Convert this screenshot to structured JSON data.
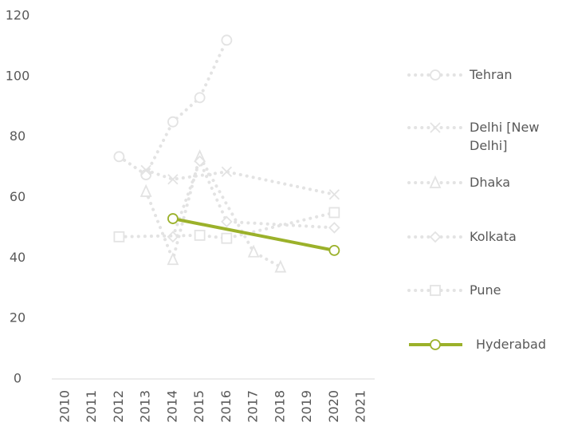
{
  "chart_data": {
    "type": "line",
    "xlim": [
      2009.5,
      2021.5
    ],
    "xticks": [
      2010,
      2011,
      2012,
      2013,
      2014,
      2015,
      2016,
      2017,
      2018,
      2019,
      2020,
      2021
    ],
    "ylim": [
      0,
      120
    ],
    "yticks": [
      0,
      20,
      40,
      60,
      80,
      100,
      120
    ],
    "grid": false,
    "legend": "right",
    "series": [
      {
        "name": "Tehran",
        "color": "#e3e3e3",
        "marker": "circle",
        "dash": "dotted",
        "x": [
          2012,
          2013,
          2014,
          2015,
          2016
        ],
        "values": [
          73.5,
          67.5,
          85,
          93,
          112
        ]
      },
      {
        "name": "Delhi [New Delhi]",
        "color": "#e3e3e3",
        "marker": "x",
        "dash": "dotted",
        "x": [
          2013,
          2014,
          2016,
          2020
        ],
        "values": [
          69,
          66,
          68.5,
          61
        ]
      },
      {
        "name": "Dhaka",
        "color": "#e3e3e3",
        "marker": "triangle",
        "dash": "dotted",
        "x": [
          2013,
          2014,
          2015,
          2017,
          2018
        ],
        "values": [
          62,
          39.5,
          73.5,
          42,
          37
        ]
      },
      {
        "name": "Kolkata",
        "color": "#e3e3e3",
        "marker": "diamond",
        "dash": "dotted",
        "x": [
          2014,
          2015,
          2016,
          2020
        ],
        "values": [
          47,
          72,
          52,
          50
        ]
      },
      {
        "name": "Pune",
        "color": "#e3e3e3",
        "marker": "square",
        "dash": "dotted",
        "x": [
          2012,
          2015,
          2016,
          2020
        ],
        "values": [
          47,
          47.5,
          46.5,
          55
        ]
      },
      {
        "name": "Hyderabad",
        "color": "#9bb12a",
        "marker": "circle",
        "dash": "solid",
        "x": [
          2014,
          2020
        ],
        "values": [
          53,
          42.5
        ]
      }
    ]
  }
}
